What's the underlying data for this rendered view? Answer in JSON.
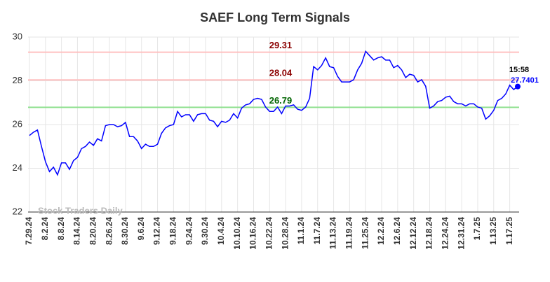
{
  "chart_data": {
    "type": "line",
    "title": "SAEF Long Term Signals",
    "categories": [
      "7.29.24",
      null,
      null,
      null,
      "8.2.24",
      null,
      null,
      null,
      "8.8.24",
      null,
      null,
      null,
      "8.14.24",
      null,
      null,
      null,
      "8.20.24",
      null,
      null,
      null,
      "8.26.24",
      null,
      null,
      null,
      "8.30.24",
      null,
      null,
      null,
      "9.6.24",
      null,
      null,
      null,
      "9.12.24",
      null,
      null,
      null,
      "9.18.24",
      null,
      null,
      null,
      "9.24.24",
      null,
      null,
      null,
      "9.30.24",
      null,
      null,
      null,
      "10.4.24",
      null,
      null,
      null,
      "10.10.24",
      null,
      null,
      null,
      "10.16.24",
      null,
      null,
      null,
      "10.22.24",
      null,
      null,
      null,
      "10.28.24",
      null,
      null,
      null,
      "11.1.24",
      null,
      null,
      null,
      "11.7.24",
      null,
      null,
      null,
      "11.13.24",
      null,
      null,
      null,
      "11.19.24",
      null,
      null,
      null,
      "11.25.24",
      null,
      null,
      null,
      "12.2.24",
      null,
      null,
      null,
      "12.6.24",
      null,
      null,
      null,
      "12.12.24",
      null,
      null,
      null,
      "12.18.24",
      null,
      null,
      null,
      "12.24.24",
      null,
      null,
      null,
      "12.31.24",
      null,
      null,
      null,
      "1.7.25",
      null,
      null,
      null,
      "1.13.25",
      null,
      null,
      null,
      "1.17.25",
      null,
      null
    ],
    "values": [
      25.5,
      25.65,
      25.75,
      25.0,
      24.3,
      23.85,
      24.05,
      23.7,
      24.25,
      24.25,
      23.95,
      24.35,
      24.5,
      24.9,
      25.0,
      25.2,
      25.05,
      25.35,
      25.25,
      25.95,
      26.0,
      26.0,
      25.9,
      25.95,
      26.1,
      25.45,
      25.45,
      25.25,
      24.9,
      25.1,
      25.0,
      25.0,
      25.1,
      25.6,
      25.85,
      25.95,
      26.0,
      26.6,
      26.35,
      26.45,
      26.45,
      26.15,
      26.45,
      26.5,
      26.5,
      26.2,
      26.15,
      25.9,
      26.15,
      26.1,
      26.2,
      26.5,
      26.3,
      26.75,
      26.9,
      26.95,
      27.15,
      27.2,
      27.15,
      26.8,
      26.6,
      26.6,
      26.8,
      26.5,
      26.85,
      26.85,
      26.9,
      26.7,
      26.65,
      26.8,
      27.2,
      28.65,
      28.5,
      28.7,
      29.05,
      28.65,
      28.6,
      28.2,
      27.95,
      27.95,
      27.95,
      28.05,
      28.5,
      28.8,
      29.35,
      29.15,
      28.95,
      29.05,
      29.1,
      28.95,
      28.95,
      28.6,
      28.7,
      28.5,
      28.15,
      28.3,
      28.25,
      27.95,
      28.05,
      27.75,
      26.75,
      26.85,
      27.05,
      27.1,
      27.25,
      27.3,
      27.05,
      26.95,
      26.95,
      26.85,
      26.95,
      26.95,
      26.8,
      26.75,
      26.25,
      26.4,
      26.65,
      27.1,
      27.2,
      27.4,
      27.8,
      27.6,
      27.7401
    ],
    "color": "#0000ff",
    "ylim": [
      22,
      30
    ],
    "yticks": [
      22,
      24,
      26,
      28,
      30
    ],
    "grid": true,
    "hlines": [
      {
        "value": 29.31,
        "color": "#ffc0c0",
        "label_color": "#8b0000"
      },
      {
        "value": 28.04,
        "color": "#ffc0c0",
        "label_color": "#8b0000"
      },
      {
        "value": 26.79,
        "color": "#90e090",
        "label_color": "#006400"
      }
    ],
    "last_time": "15:58",
    "watermark": "Stock Traders Daily"
  }
}
